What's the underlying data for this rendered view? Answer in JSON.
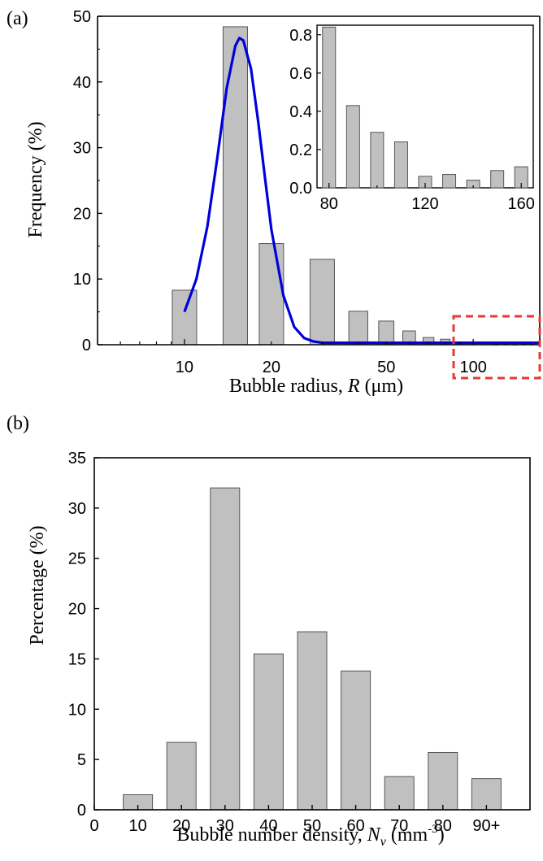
{
  "chart_data": [
    {
      "panel": "(a)",
      "type": "bar",
      "scale": "log",
      "xlabel": {
        "text": "Bubble radius, ",
        "var": "R",
        "unit": " (μm)"
      },
      "ylabel": "Frequency (%)",
      "ylim": [
        0,
        50
      ],
      "yticks": [
        0,
        10,
        20,
        30,
        40,
        50
      ],
      "xticks": [
        10,
        20,
        50,
        100
      ],
      "xlim": [
        5,
        170
      ],
      "bars": [
        {
          "x": 10,
          "y": 8.3
        },
        {
          "x": 15,
          "y": 48.4
        },
        {
          "x": 20,
          "y": 15.4
        },
        {
          "x": 30,
          "y": 13.0
        },
        {
          "x": 40,
          "y": 5.1
        },
        {
          "x": 50,
          "y": 3.6
        },
        {
          "x": 60,
          "y": 2.1
        },
        {
          "x": 70,
          "y": 1.1
        },
        {
          "x": 80,
          "y": 0.84
        },
        {
          "x": 90,
          "y": 0.43
        },
        {
          "x": 100,
          "y": 0.29
        },
        {
          "x": 110,
          "y": 0.24
        },
        {
          "x": 120,
          "y": 0.06
        },
        {
          "x": 130,
          "y": 0.07
        },
        {
          "x": 140,
          "y": 0.04
        },
        {
          "x": 150,
          "y": 0.09
        },
        {
          "x": 160,
          "y": 0.11
        }
      ],
      "fit_curve": {
        "color": "#0000dd",
        "x": [
          10,
          11,
          12,
          13,
          14,
          15,
          15.5,
          16,
          17,
          18,
          19,
          20,
          22,
          24,
          26,
          28,
          30,
          35,
          40,
          60,
          100,
          170
        ],
        "y": [
          5,
          10,
          18,
          28.5,
          39,
          45.5,
          46.7,
          46.3,
          42,
          34,
          25.5,
          17.5,
          7.5,
          2.7,
          1.0,
          0.5,
          0.3,
          0.3,
          0.3,
          0.3,
          0.3,
          0.3
        ]
      },
      "highlight_box": {
        "x_from": 75,
        "x_to": 170,
        "color": "#e53935"
      },
      "inset": {
        "ylim": [
          0,
          0.85
        ],
        "yticks": [
          0.0,
          0.2,
          0.4,
          0.6,
          0.8
        ],
        "xlim": [
          75,
          165
        ],
        "xticks": [
          80,
          120,
          160
        ],
        "bars": [
          {
            "x": 80,
            "y": 0.84
          },
          {
            "x": 90,
            "y": 0.43
          },
          {
            "x": 100,
            "y": 0.29
          },
          {
            "x": 110,
            "y": 0.24
          },
          {
            "x": 120,
            "y": 0.06
          },
          {
            "x": 130,
            "y": 0.07
          },
          {
            "x": 140,
            "y": 0.04
          },
          {
            "x": 150,
            "y": 0.09
          },
          {
            "x": 160,
            "y": 0.11
          }
        ]
      }
    },
    {
      "panel": "(b)",
      "type": "bar",
      "xlabel": {
        "text": "Bubble number density, ",
        "var": "N",
        "sub": "v",
        "unit": " (mm",
        "sup": "-3",
        "close": ")"
      },
      "ylabel": "Percentage (%)",
      "ylim": [
        0,
        35
      ],
      "yticks": [
        0,
        5,
        10,
        15,
        20,
        25,
        30,
        35
      ],
      "xlim": [
        0,
        100
      ],
      "xticks": [
        "0",
        "10",
        "20",
        "30",
        "40",
        "50",
        "60",
        "70",
        "80",
        "90+"
      ],
      "categories": [
        "10",
        "20",
        "30",
        "40",
        "50",
        "60",
        "70",
        "80",
        "90+"
      ],
      "values": [
        1.5,
        6.7,
        32.0,
        15.5,
        17.7,
        13.8,
        3.3,
        5.7,
        3.1
      ]
    }
  ],
  "colors": {
    "bar_fill": "#c0c0c0",
    "bar_stroke": "#555555",
    "axis": "#000000",
    "fit": "#0000dd",
    "highlight": "#e53935"
  }
}
